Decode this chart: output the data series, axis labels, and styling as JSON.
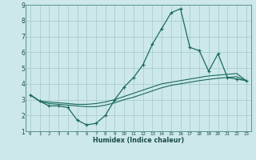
{
  "xlabel": "Humidex (Indice chaleur)",
  "ylabel": "",
  "xlim": [
    -0.5,
    23.5
  ],
  "ylim": [
    1,
    9
  ],
  "xticks": [
    0,
    1,
    2,
    3,
    4,
    5,
    6,
    7,
    8,
    9,
    10,
    11,
    12,
    13,
    14,
    15,
    16,
    17,
    18,
    19,
    20,
    21,
    22,
    23
  ],
  "yticks": [
    1,
    2,
    3,
    4,
    5,
    6,
    7,
    8,
    9
  ],
  "background_color": "#cce8e8",
  "grid_color": "#aac8c8",
  "line_color": "#1a6b5a",
  "line1_x": [
    0,
    1,
    2,
    3,
    4,
    5,
    6,
    7,
    8,
    9,
    10,
    11,
    12,
    13,
    14,
    15,
    16,
    17,
    18,
    19,
    20,
    21,
    22,
    23
  ],
  "line1_y": [
    3.3,
    2.9,
    2.6,
    2.6,
    2.5,
    1.7,
    1.4,
    1.5,
    2.0,
    3.0,
    3.8,
    4.4,
    5.2,
    6.5,
    7.5,
    8.5,
    8.75,
    6.3,
    6.1,
    4.8,
    5.9,
    4.4,
    4.3,
    4.2
  ],
  "line2_x": [
    0,
    1,
    2,
    3,
    4,
    5,
    6,
    7,
    8,
    9,
    10,
    11,
    12,
    13,
    14,
    15,
    16,
    17,
    18,
    19,
    20,
    21,
    22,
    23
  ],
  "line2_y": [
    3.3,
    2.9,
    2.85,
    2.8,
    2.75,
    2.7,
    2.7,
    2.75,
    2.85,
    3.0,
    3.2,
    3.4,
    3.6,
    3.8,
    4.0,
    4.1,
    4.2,
    4.3,
    4.4,
    4.5,
    4.55,
    4.6,
    4.65,
    4.2
  ],
  "line3_x": [
    0,
    1,
    2,
    3,
    4,
    5,
    6,
    7,
    8,
    9,
    10,
    11,
    12,
    13,
    14,
    15,
    16,
    17,
    18,
    19,
    20,
    21,
    22,
    23
  ],
  "line3_y": [
    3.3,
    2.9,
    2.75,
    2.7,
    2.65,
    2.6,
    2.55,
    2.55,
    2.65,
    2.8,
    3.0,
    3.15,
    3.35,
    3.55,
    3.75,
    3.9,
    4.0,
    4.1,
    4.2,
    4.28,
    4.35,
    4.4,
    4.45,
    4.2
  ]
}
